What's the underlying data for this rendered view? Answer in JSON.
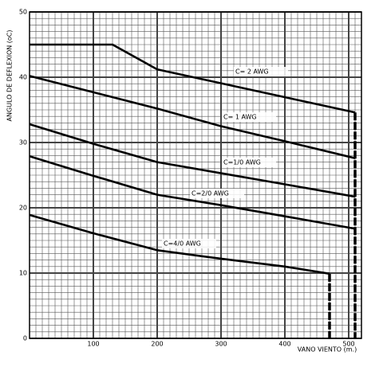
{
  "chart_data": {
    "type": "line",
    "x_label": "VANO VIENTO (m.)",
    "y_label": "ANGULO DE DEFLEXION (oC)",
    "xlim": [
      0,
      520
    ],
    "ylim": [
      0,
      50
    ],
    "xticks": [
      100,
      200,
      300,
      400,
      500
    ],
    "yticks": [
      0,
      10,
      20,
      30,
      40,
      50
    ],
    "grid": true,
    "x_minor_step": 10,
    "y_minor_step": 1,
    "color": "#000000",
    "series": [
      {
        "name": "C= 2 AWG",
        "x": [
          0,
          130,
          200,
          510,
          510
        ],
        "values": [
          45,
          45,
          41.2,
          34.6,
          0
        ],
        "end_dashed": true
      },
      {
        "name": "C= 1 AWG",
        "x": [
          0,
          100,
          200,
          300,
          400,
          510
        ],
        "values": [
          40.2,
          37.7,
          35.2,
          32.5,
          30.2,
          27.6
        ]
      },
      {
        "name": "C=1/0 AWG",
        "x": [
          0,
          100,
          200,
          300,
          400,
          510
        ],
        "values": [
          32.8,
          29.8,
          27,
          25.3,
          23.6,
          21.7
        ]
      },
      {
        "name": "C=2/0 AWG",
        "x": [
          0,
          100,
          200,
          300,
          400,
          510
        ],
        "values": [
          27.9,
          24.9,
          22,
          20.4,
          18.7,
          16.8
        ]
      },
      {
        "name": "C=4/0 AWG",
        "x": [
          0,
          100,
          200,
          300,
          400,
          470,
          470
        ],
        "values": [
          18.9,
          16.1,
          13.5,
          12.2,
          11,
          9.9,
          0
        ],
        "end_dashed": true
      }
    ]
  }
}
